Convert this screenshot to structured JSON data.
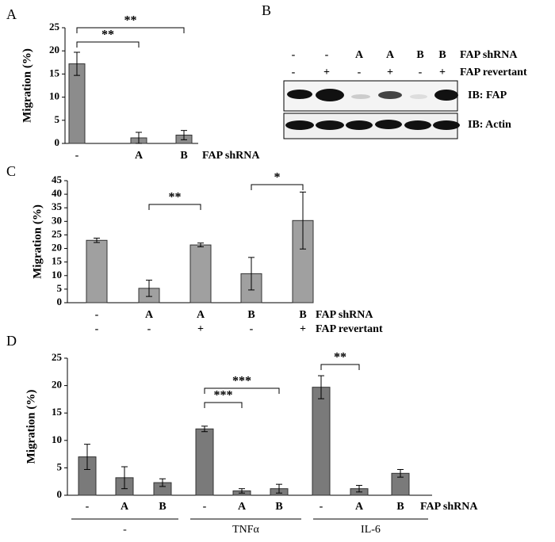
{
  "panel_labels": [
    "A",
    "B",
    "C",
    "D"
  ],
  "chart_data": [
    {
      "type": "bar",
      "ylabel": "Migration (%)",
      "categories": [
        "-",
        "A",
        "B"
      ],
      "row_titles": [
        "FAP shRNA"
      ],
      "values": [
        17.2,
        1.2,
        1.8
      ],
      "errors": [
        2.5,
        1.2,
        1.0
      ],
      "color": "#8c8c8c",
      "ylim": [
        0,
        25
      ],
      "yticks": [
        0,
        5,
        10,
        15,
        20,
        25
      ],
      "annotations": [
        "**",
        "**"
      ]
    },
    {
      "type": "bar",
      "ylabel": "Migration (%)",
      "categories": [
        "-",
        "A",
        "A",
        "B",
        "B"
      ],
      "categories2": [
        "-",
        "-",
        "+",
        "-",
        "+"
      ],
      "row_titles": [
        "FAP shRNA",
        "FAP revertant"
      ],
      "values": [
        23,
        5.3,
        21.3,
        10.7,
        30.3
      ],
      "errors": [
        0.8,
        3,
        0.7,
        6,
        10.5
      ],
      "color": "#a0a0a0",
      "ylim": [
        0,
        45
      ],
      "yticks": [
        0,
        5,
        10,
        15,
        20,
        25,
        30,
        35,
        40,
        45
      ],
      "annotations": [
        "**",
        "*"
      ]
    },
    {
      "type": "bar",
      "ylabel": "Migration (%)",
      "categories": [
        "-",
        "A",
        "B",
        "-",
        "A",
        "B",
        "-",
        "A",
        "B"
      ],
      "row_titles": [
        "FAP shRNA"
      ],
      "groups": [
        "-",
        "TNFα",
        "IL-6"
      ],
      "values": [
        7.0,
        3.2,
        2.3,
        12.1,
        0.8,
        1.2,
        19.7,
        1.2,
        4.0
      ],
      "errors": [
        2.3,
        2.0,
        0.7,
        0.5,
        0.4,
        0.8,
        2.1,
        0.6,
        0.7
      ],
      "color": "#7a7a7a",
      "ylim": [
        0,
        25
      ],
      "yticks": [
        0,
        5,
        10,
        15,
        20,
        25
      ],
      "annotations": [
        "***",
        "***",
        "**"
      ]
    }
  ],
  "blot": {
    "rows": [
      {
        "label": "FAP shRNA",
        "lanes": [
          "-",
          "-",
          "A",
          "A",
          "B",
          "B"
        ]
      },
      {
        "label": "FAP revertant",
        "lanes": [
          "-",
          "+",
          "-",
          "+",
          "-",
          "+"
        ]
      }
    ],
    "bands": [
      "IB: FAP",
      "IB: Actin"
    ]
  }
}
